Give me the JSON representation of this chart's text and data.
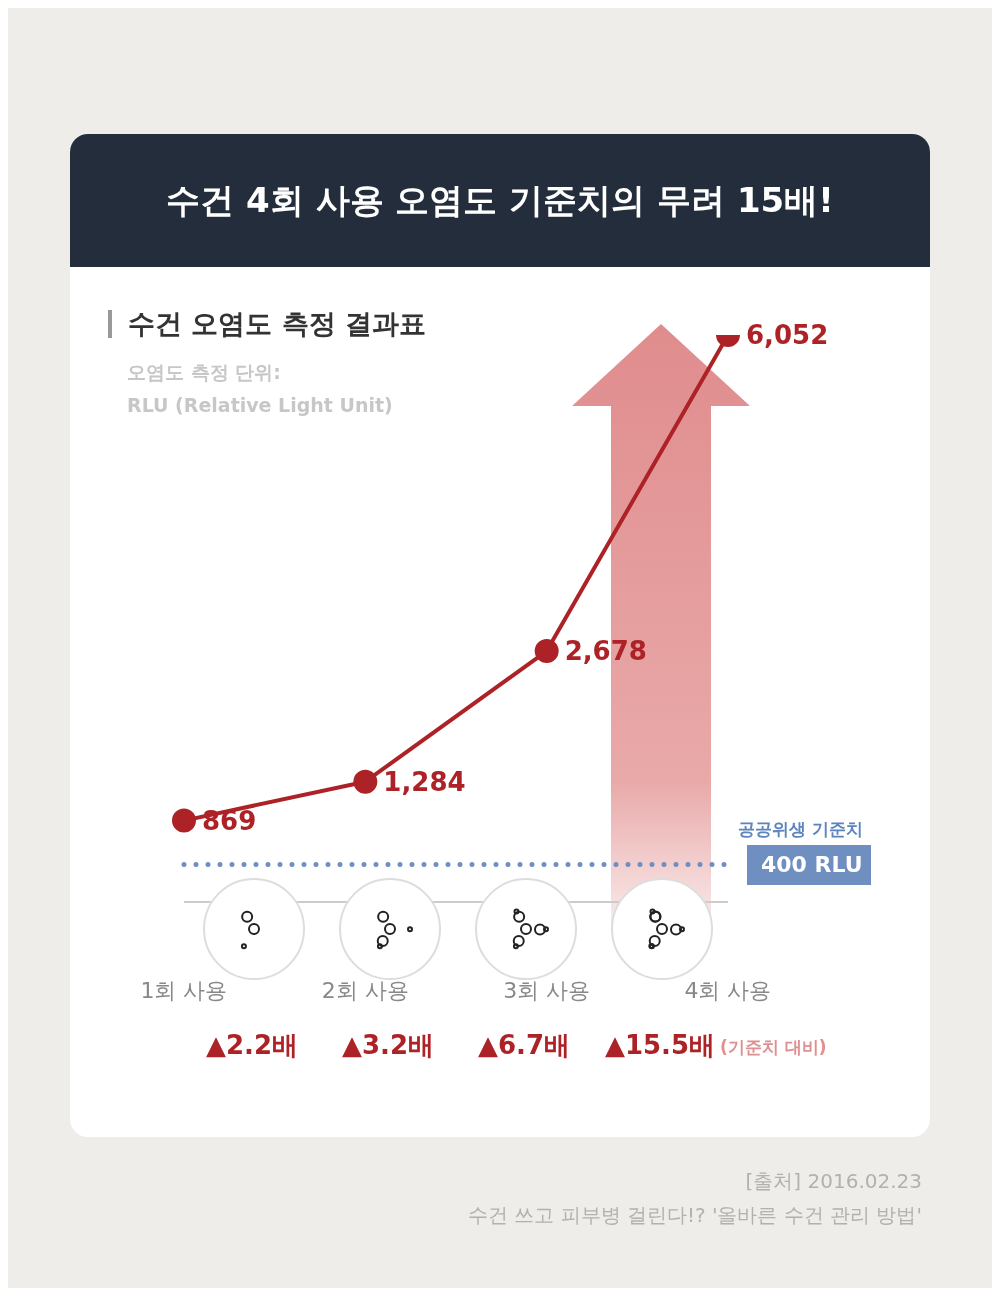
{
  "chart_data": {
    "type": "line",
    "title": "수건 4회 사용 오염도 기준치의 무려 15배!",
    "subtitle": "수건 오염도 측정 결과표",
    "categories": [
      "1회 사용",
      "2회 사용",
      "3회 사용",
      "4회 사용"
    ],
    "series": [
      {
        "color": "#ad2226",
        "values": [
          869,
          1284,
          2678,
          6052
        ],
        "value_labels": [
          "869",
          "1,284",
          "2,678",
          "6,052"
        ]
      }
    ],
    "marker": "circle",
    "line_style": "solid",
    "grid": false,
    "tick_labels": "x",
    "ref_lines": [
      {
        "axis": "y",
        "value": 400,
        "label": "400 RLU",
        "color": "#6f8fc0",
        "line_style": "dotted"
      }
    ],
    "annotations": [
      "오염도 측정 단위:",
      "RLU (Relative Light Unit)",
      "공공위생 기준치",
      "(기준치 대비)",
      "[출처] 2016.02.23",
      "수건 쓰고 피부병 걸린다!? '올바른 수건 관리 방법'",
      "▲2.2배",
      "▲3.2배",
      "▲6.7배",
      "▲15.5배"
    ]
  }
}
